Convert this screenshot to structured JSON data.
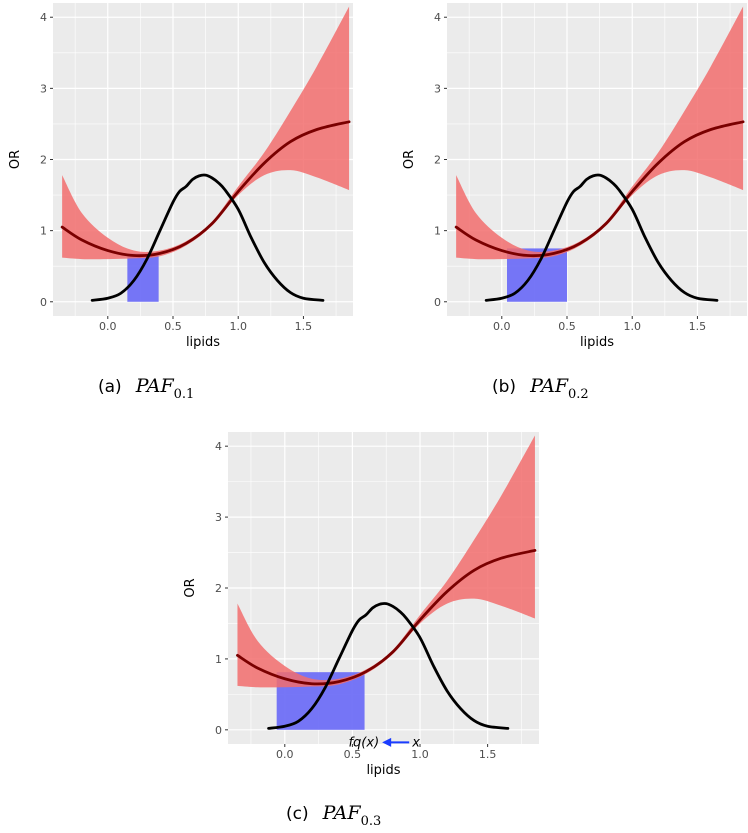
{
  "colors": {
    "panel_bg": "#ebebeb",
    "grid": "#ffffff",
    "ribbon": "#f26d6d",
    "or_line": "#7a0000",
    "density": "#000000",
    "paf_rect": "#6f6ff7",
    "arrow": "#1a3cff"
  },
  "chart_data": [
    {
      "id": "a",
      "type": "line",
      "caption_letter": "(a)",
      "caption_math": "PAF",
      "caption_sub": "0.1",
      "xlabel": "lipids",
      "ylabel": "OR",
      "xlim": [
        -0.42,
        1.88
      ],
      "ylim": [
        -0.2,
        4.2
      ],
      "xticks": [
        "0.0",
        "0.5",
        "1.0",
        "1.5"
      ],
      "yticks": [
        "0",
        "1",
        "2",
        "3",
        "4"
      ],
      "xtick_values": [
        0,
        0.5,
        1.0,
        1.5
      ],
      "ytick_values": [
        0,
        1,
        2,
        3,
        4
      ],
      "shaded_region": {
        "x0": 0.15,
        "x1": 0.39,
        "label": "PAF interval"
      },
      "or_curve": {
        "x": [
          -0.35,
          -0.2,
          0,
          0.2,
          0.4,
          0.6,
          0.8,
          1.0,
          1.2,
          1.4,
          1.6,
          1.85
        ],
        "y": [
          1.05,
          0.87,
          0.72,
          0.65,
          0.68,
          0.82,
          1.1,
          1.55,
          1.95,
          2.25,
          2.42,
          2.53
        ]
      },
      "ci_lower": {
        "x": [
          -0.35,
          -0.2,
          0,
          0.2,
          0.4,
          0.6,
          0.8,
          1.0,
          1.2,
          1.4,
          1.6,
          1.85
        ],
        "y": [
          0.62,
          0.6,
          0.6,
          0.61,
          0.64,
          0.79,
          1.07,
          1.5,
          1.78,
          1.85,
          1.75,
          1.57
        ]
      },
      "ci_upper": {
        "x": [
          -0.35,
          -0.2,
          0,
          0.2,
          0.4,
          0.6,
          0.8,
          1.0,
          1.2,
          1.4,
          1.6,
          1.85
        ],
        "y": [
          1.78,
          1.25,
          0.9,
          0.72,
          0.72,
          0.85,
          1.13,
          1.62,
          2.1,
          2.68,
          3.3,
          4.15
        ]
      },
      "density": {
        "x": [
          -0.12,
          0,
          0.1,
          0.2,
          0.3,
          0.4,
          0.5,
          0.55,
          0.6,
          0.65,
          0.7,
          0.75,
          0.8,
          0.85,
          0.9,
          1.0,
          1.1,
          1.2,
          1.3,
          1.4,
          1.5,
          1.65
        ],
        "y": [
          0.02,
          0.05,
          0.12,
          0.3,
          0.6,
          1.0,
          1.4,
          1.55,
          1.62,
          1.72,
          1.77,
          1.78,
          1.74,
          1.67,
          1.57,
          1.3,
          0.9,
          0.55,
          0.3,
          0.13,
          0.05,
          0.02
        ]
      }
    },
    {
      "id": "b",
      "type": "line",
      "caption_letter": "(b)",
      "caption_math": "PAF",
      "caption_sub": "0.2",
      "xlabel": "lipids",
      "ylabel": "OR",
      "xlim": [
        -0.42,
        1.88
      ],
      "ylim": [
        -0.2,
        4.2
      ],
      "xticks": [
        "0.0",
        "0.5",
        "1.0",
        "1.5"
      ],
      "yticks": [
        "0",
        "1",
        "2",
        "3",
        "4"
      ],
      "xtick_values": [
        0,
        0.5,
        1.0,
        1.5
      ],
      "ytick_values": [
        0,
        1,
        2,
        3,
        4
      ],
      "shaded_region": {
        "x0": 0.04,
        "x1": 0.5,
        "label": "PAF interval"
      },
      "or_curve": {
        "x": [
          -0.35,
          -0.2,
          0,
          0.2,
          0.4,
          0.6,
          0.8,
          1.0,
          1.2,
          1.4,
          1.6,
          1.85
        ],
        "y": [
          1.05,
          0.87,
          0.72,
          0.65,
          0.68,
          0.82,
          1.1,
          1.55,
          1.95,
          2.25,
          2.42,
          2.53
        ]
      },
      "ci_lower": {
        "x": [
          -0.35,
          -0.2,
          0,
          0.2,
          0.4,
          0.6,
          0.8,
          1.0,
          1.2,
          1.4,
          1.6,
          1.85
        ],
        "y": [
          0.62,
          0.6,
          0.6,
          0.61,
          0.64,
          0.79,
          1.07,
          1.5,
          1.78,
          1.85,
          1.75,
          1.57
        ]
      },
      "ci_upper": {
        "x": [
          -0.35,
          -0.2,
          0,
          0.2,
          0.4,
          0.6,
          0.8,
          1.0,
          1.2,
          1.4,
          1.6,
          1.85
        ],
        "y": [
          1.78,
          1.25,
          0.9,
          0.72,
          0.72,
          0.85,
          1.13,
          1.62,
          2.1,
          2.68,
          3.3,
          4.15
        ]
      },
      "density": {
        "x": [
          -0.12,
          0,
          0.1,
          0.2,
          0.3,
          0.4,
          0.5,
          0.55,
          0.6,
          0.65,
          0.7,
          0.75,
          0.8,
          0.85,
          0.9,
          1.0,
          1.1,
          1.2,
          1.3,
          1.4,
          1.5,
          1.65
        ],
        "y": [
          0.02,
          0.05,
          0.12,
          0.3,
          0.6,
          1.0,
          1.4,
          1.55,
          1.62,
          1.72,
          1.77,
          1.78,
          1.74,
          1.67,
          1.57,
          1.3,
          0.9,
          0.55,
          0.3,
          0.13,
          0.05,
          0.02
        ]
      }
    },
    {
      "id": "c",
      "type": "line",
      "caption_letter": "(c)",
      "caption_math": "PAF",
      "caption_sub": "0.3",
      "xlabel": "lipids",
      "ylabel": "OR",
      "xlim": [
        -0.42,
        1.88
      ],
      "ylim": [
        -0.2,
        4.2
      ],
      "xticks": [
        "0.0",
        "0.5",
        "1.0",
        "1.5"
      ],
      "yticks": [
        "0",
        "1",
        "2",
        "3",
        "4"
      ],
      "xtick_values": [
        0,
        0.5,
        1.0,
        1.5
      ],
      "ytick_values": [
        0,
        1,
        2,
        3,
        4
      ],
      "shaded_region": {
        "x0": -0.06,
        "x1": 0.59,
        "label": "PAF interval"
      },
      "annotation": {
        "left_text": "fq(x)",
        "right_text": "x",
        "x_from": 0.92,
        "x_to": 0.72,
        "y": -0.12
      },
      "or_curve": {
        "x": [
          -0.35,
          -0.2,
          0,
          0.2,
          0.4,
          0.6,
          0.8,
          1.0,
          1.2,
          1.4,
          1.6,
          1.85
        ],
        "y": [
          1.05,
          0.87,
          0.72,
          0.65,
          0.68,
          0.82,
          1.1,
          1.55,
          1.95,
          2.25,
          2.42,
          2.53
        ]
      },
      "ci_lower": {
        "x": [
          -0.35,
          -0.2,
          0,
          0.2,
          0.4,
          0.6,
          0.8,
          1.0,
          1.2,
          1.4,
          1.6,
          1.85
        ],
        "y": [
          0.62,
          0.6,
          0.6,
          0.61,
          0.64,
          0.79,
          1.07,
          1.5,
          1.78,
          1.85,
          1.75,
          1.57
        ]
      },
      "ci_upper": {
        "x": [
          -0.35,
          -0.2,
          0,
          0.2,
          0.4,
          0.6,
          0.8,
          1.0,
          1.2,
          1.4,
          1.6,
          1.85
        ],
        "y": [
          1.78,
          1.25,
          0.9,
          0.72,
          0.72,
          0.85,
          1.13,
          1.62,
          2.1,
          2.68,
          3.3,
          4.15
        ]
      },
      "density": {
        "x": [
          -0.12,
          0,
          0.1,
          0.2,
          0.3,
          0.4,
          0.5,
          0.55,
          0.6,
          0.65,
          0.7,
          0.75,
          0.8,
          0.85,
          0.9,
          1.0,
          1.1,
          1.2,
          1.3,
          1.4,
          1.5,
          1.65
        ],
        "y": [
          0.02,
          0.05,
          0.12,
          0.3,
          0.6,
          1.0,
          1.4,
          1.55,
          1.62,
          1.72,
          1.77,
          1.78,
          1.74,
          1.67,
          1.57,
          1.3,
          0.9,
          0.55,
          0.3,
          0.13,
          0.05,
          0.02
        ]
      }
    }
  ]
}
